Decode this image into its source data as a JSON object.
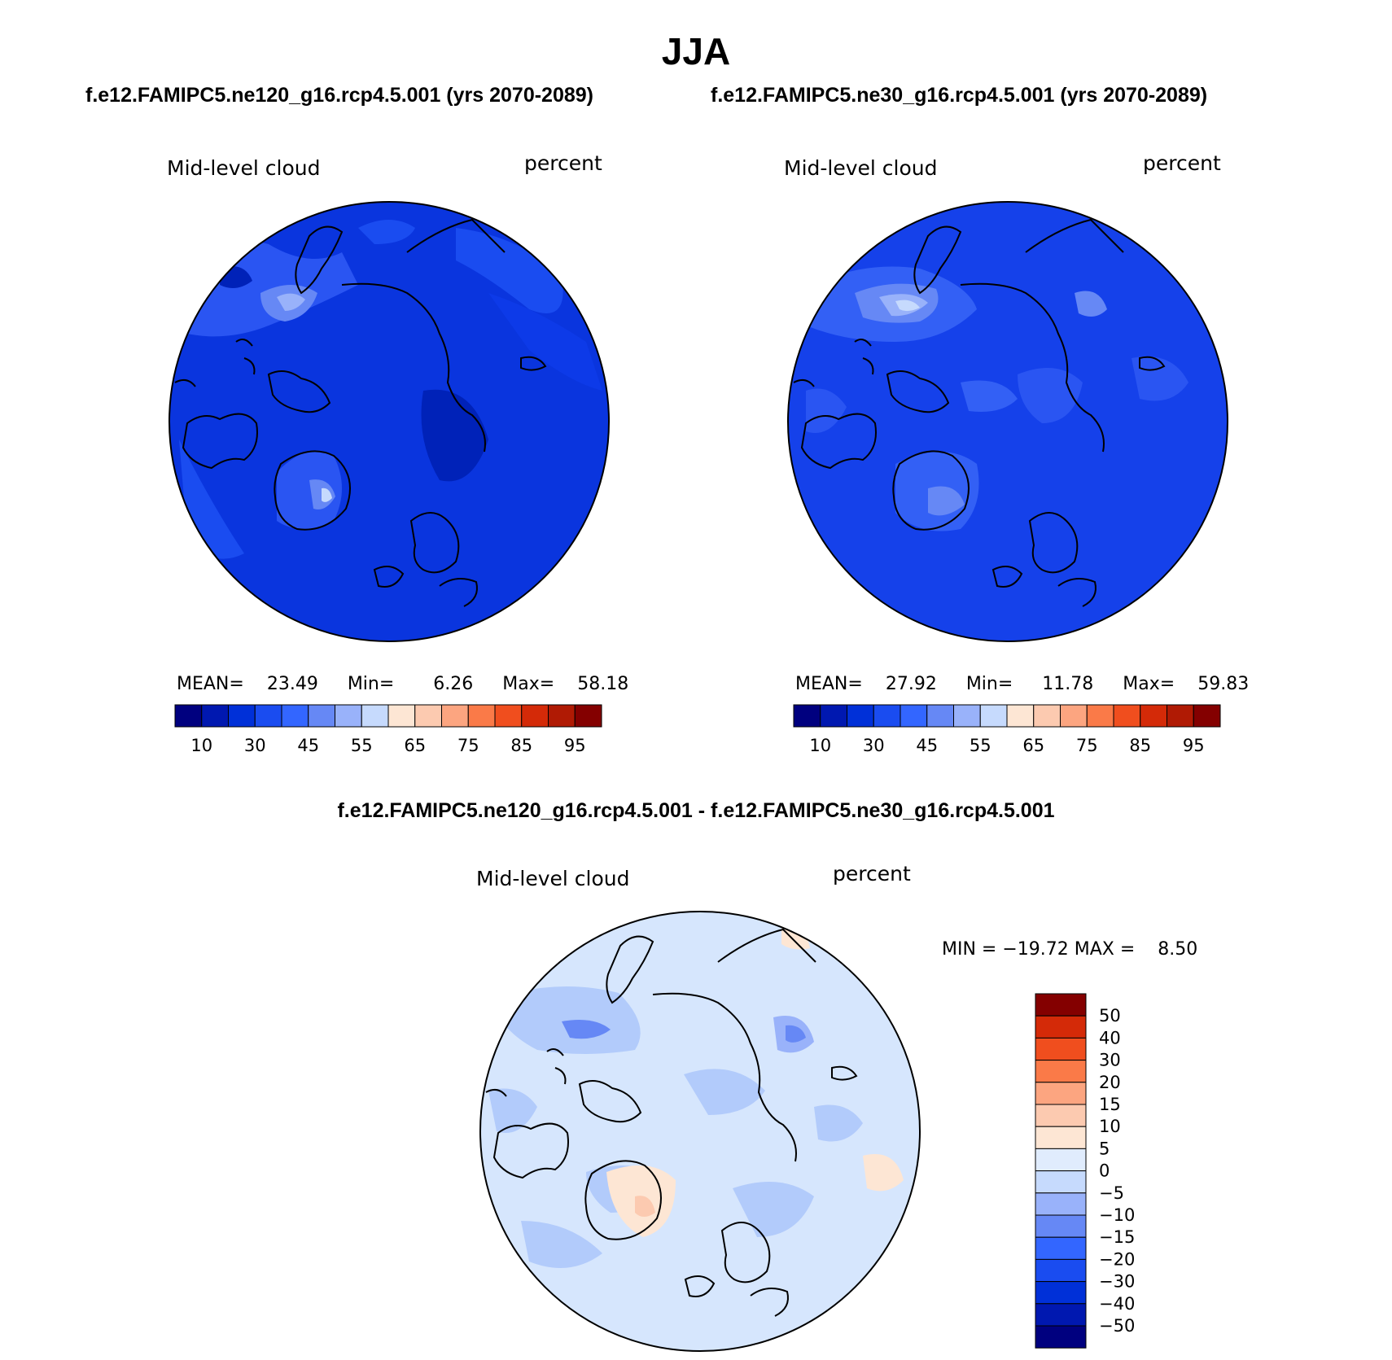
{
  "title": "JJA",
  "left_header": "f.e12.FAMIPC5.ne120_g16.rcp4.5.001 (yrs 2070-2089)",
  "right_header": "f.e12.FAMIPC5.ne30_g16.rcp4.5.001 (yrs 2070-2089)",
  "diff_header": "f.e12.FAMIPC5.ne120_g16.rcp4.5.001 - f.e12.FAMIPC5.ne30_g16.rcp4.5.001",
  "colors": {
    "abs_scale": [
      "#00007f",
      "#0018b0",
      "#0030d8",
      "#1a4cf0",
      "#3366ff",
      "#6688f5",
      "#99b2fa",
      "#c6dafd",
      "#fde6d4",
      "#fccab0",
      "#fca580",
      "#fa7a48",
      "#f04e1e",
      "#d42a08",
      "#b01a04",
      "#840000"
    ],
    "diff_scale": [
      "#00007f",
      "#0018b0",
      "#0030d8",
      "#1a4cf0",
      "#3366ff",
      "#6688f5",
      "#99b2fa",
      "#c6dafd",
      "#e0ecfd",
      "#fde6d4",
      "#fccab0",
      "#fca580",
      "#fa7a48",
      "#f04e1e",
      "#d42a08",
      "#840000"
    ],
    "map_left_base": "#0a35de",
    "map_right_base": "#1541ea",
    "map_diff_base": "#d6e6fd"
  },
  "panels": [
    {
      "variable": "Mid-level cloud",
      "units": "percent",
      "mean_label": "MEAN=",
      "mean": "23.49",
      "min_label": "Min=",
      "min": "6.26",
      "max_label": "Max=",
      "max": "58.18"
    },
    {
      "variable": "Mid-level cloud",
      "units": "percent",
      "mean_label": "MEAN=",
      "mean": "27.92",
      "min_label": "Min=",
      "min": "11.78",
      "max_label": "Max=",
      "max": "59.83"
    }
  ],
  "diff_panel": {
    "variable": "Mid-level cloud",
    "units": "percent",
    "stats": "MIN = −19.72 MAX =    8.50"
  },
  "chart_data": [
    {
      "type": "heatmap",
      "projection": "polar stereographic (north)",
      "field": "Mid-level cloud",
      "units": "percent",
      "mean": 23.49,
      "min": 6.26,
      "max": 58.18,
      "colorbar_levels": [
        10,
        30,
        45,
        55,
        65,
        75,
        85,
        95
      ],
      "colorbar_tick_labels": [
        "10",
        "30",
        "45",
        "55",
        "65",
        "75",
        "85",
        "95"
      ]
    },
    {
      "type": "heatmap",
      "projection": "polar stereographic (north)",
      "field": "Mid-level cloud",
      "units": "percent",
      "mean": 27.92,
      "min": 11.78,
      "max": 59.83,
      "colorbar_levels": [
        10,
        30,
        45,
        55,
        65,
        75,
        85,
        95
      ],
      "colorbar_tick_labels": [
        "10",
        "30",
        "45",
        "55",
        "65",
        "75",
        "85",
        "95"
      ]
    },
    {
      "type": "heatmap",
      "projection": "polar stereographic (north)",
      "field": "Mid-level cloud",
      "units": "percent",
      "min": -19.72,
      "max": 8.5,
      "colorbar_tick_labels": [
        "50",
        "40",
        "30",
        "20",
        "15",
        "10",
        "5",
        "0",
        "−5",
        "−10",
        "−15",
        "−20",
        "−30",
        "−40",
        "−50"
      ]
    }
  ]
}
